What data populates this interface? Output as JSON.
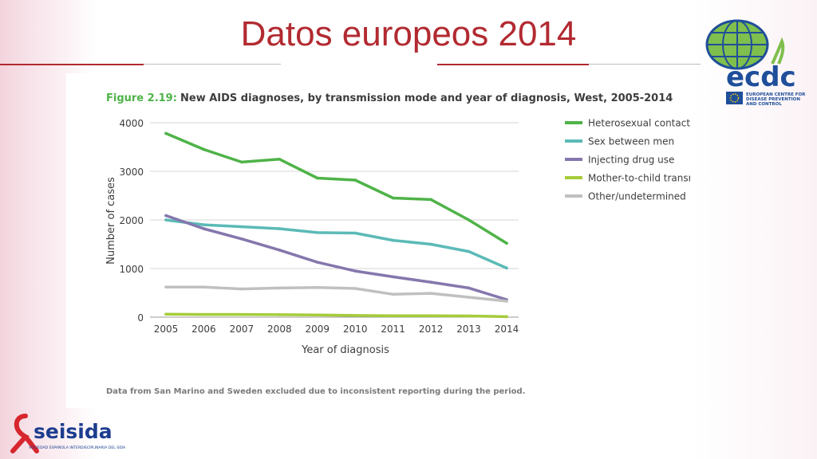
{
  "slide": {
    "title": "Datos europeos 2014"
  },
  "ecdc_logo": {
    "wordmark": "ecdc",
    "tagline_lines": [
      "EUROPEAN CENTRE FOR",
      "DISEASE PREVENTION",
      "AND CONTROL"
    ],
    "color": "#1f4e9a",
    "globe_color": "#7fbf4d"
  },
  "seisida_logo": {
    "wordmark": "seisida",
    "tagline": "SOCIEDAD ESPAÑOLA INTERDISCIPLINARIA DEL SIDA",
    "colors": {
      "ribbon": "#d7262e",
      "text": "#1b3d8f"
    }
  },
  "figure": {
    "label": "Figure 2.19:",
    "caption": "New AIDS diagnoses, by transmission mode and year of diagnosis, West, 2005-2014",
    "footnote": "Data from San Marino and Sweden excluded due to inconsistent reporting during the period."
  },
  "chart_data": {
    "type": "line",
    "xlabel": "Year of diagnosis",
    "ylabel": "Number of cases",
    "x": [
      "2005",
      "2006",
      "2007",
      "2008",
      "2009",
      "2010",
      "2011",
      "2012",
      "2013",
      "2014"
    ],
    "ylim": [
      0,
      4000
    ],
    "yticks": [
      0,
      1000,
      2000,
      3000,
      4000
    ],
    "grid": true,
    "legend_position": "right",
    "series": [
      {
        "name": "Heterosexual contact",
        "color": "#4fb348",
        "values": [
          3780,
          3450,
          3190,
          3250,
          2860,
          2820,
          2450,
          2420,
          2000,
          1520
        ]
      },
      {
        "name": "Sex between men",
        "color": "#5bbab7",
        "values": [
          2000,
          1900,
          1860,
          1820,
          1740,
          1730,
          1580,
          1500,
          1350,
          1010
        ]
      },
      {
        "name": "Injecting drug use",
        "color": "#8577ad",
        "values": [
          2090,
          1820,
          1610,
          1380,
          1130,
          950,
          830,
          720,
          600,
          360
        ]
      },
      {
        "name": "Mother-to-child transmission",
        "color": "#a6cc3a",
        "values": [
          60,
          55,
          55,
          50,
          45,
          35,
          30,
          30,
          25,
          10
        ]
      },
      {
        "name": "Other/undetermined",
        "color": "#c0c0c0",
        "values": [
          620,
          620,
          580,
          600,
          610,
          590,
          470,
          490,
          410,
          330
        ]
      }
    ]
  }
}
